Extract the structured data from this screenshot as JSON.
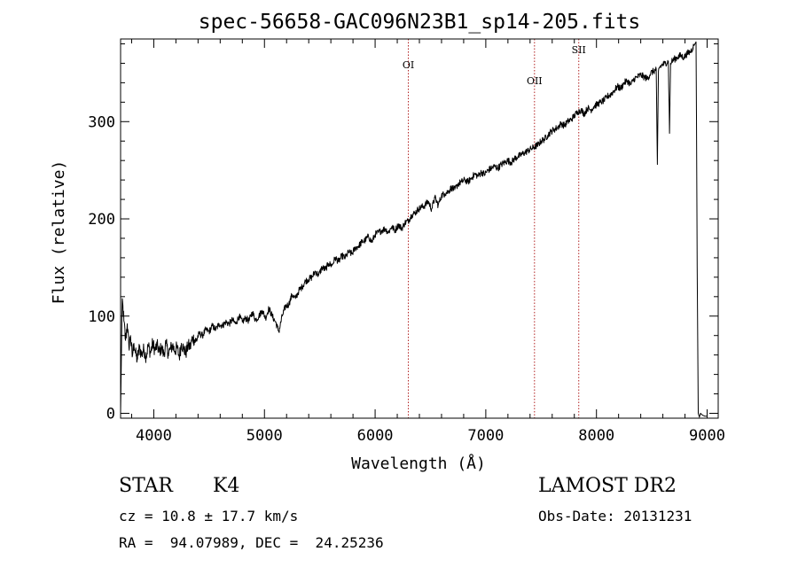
{
  "chart_data": {
    "type": "line",
    "title": "spec-56658-GAC096N23B1_sp14-205.fits",
    "xlabel": "Wavelength (Å)",
    "ylabel": "Flux (relative)",
    "xlim": [
      3700,
      9100
    ],
    "ylim": [
      -5,
      385
    ],
    "x_ticks": [
      4000,
      5000,
      6000,
      7000,
      8000,
      9000
    ],
    "y_ticks": [
      0,
      100,
      200,
      300
    ],
    "grid": false,
    "series": [
      {
        "x": [
          3700,
          3715,
          3730,
          3745,
          3760,
          3775,
          3790,
          3805,
          3820,
          3835,
          3850,
          3870,
          3890,
          3910,
          3930,
          3950,
          3970,
          3990,
          4010,
          4030,
          4050,
          4070,
          4090,
          4110,
          4130,
          4150,
          4170,
          4190,
          4210,
          4230,
          4250,
          4270,
          4290,
          4310,
          4330,
          4350,
          4380,
          4410,
          4440,
          4470,
          4500,
          4530,
          4560,
          4590,
          4620,
          4650,
          4680,
          4710,
          4740,
          4770,
          4800,
          4830,
          4860,
          4890,
          4920,
          4950,
          4980,
          5010,
          5040,
          5070,
          5100,
          5130,
          5160,
          5190,
          5220,
          5250,
          5280,
          5310,
          5340,
          5370,
          5400,
          5430,
          5460,
          5490,
          5520,
          5550,
          5580,
          5610,
          5640,
          5670,
          5700,
          5730,
          5760,
          5790,
          5820,
          5850,
          5880,
          5910,
          5940,
          5970,
          6000,
          6030,
          6060,
          6090,
          6120,
          6150,
          6180,
          6210,
          6240,
          6270,
          6300,
          6330,
          6360,
          6390,
          6420,
          6450,
          6480,
          6510,
          6540,
          6570,
          6600,
          6630,
          6660,
          6690,
          6720,
          6750,
          6780,
          6810,
          6840,
          6870,
          6900,
          6930,
          6960,
          6990,
          7020,
          7050,
          7080,
          7110,
          7140,
          7170,
          7200,
          7230,
          7260,
          7290,
          7320,
          7350,
          7380,
          7410,
          7440,
          7470,
          7500,
          7530,
          7560,
          7590,
          7620,
          7650,
          7680,
          7710,
          7740,
          7770,
          7800,
          7830,
          7860,
          7890,
          7920,
          7950,
          7980,
          8010,
          8040,
          8070,
          8100,
          8130,
          8160,
          8190,
          8220,
          8250,
          8280,
          8310,
          8340,
          8370,
          8400,
          8430,
          8460,
          8490,
          8520,
          8540,
          8550,
          8560,
          8570,
          8590,
          8620,
          8650,
          8660,
          8670,
          8680,
          8700,
          8730,
          8760,
          8790,
          8820,
          8850,
          8870,
          8890,
          8900,
          8910,
          8920,
          8930,
          8940,
          8960,
          8980,
          9000
        ],
        "y": [
          0,
          118,
          95,
          75,
          92,
          68,
          80,
          58,
          72,
          62,
          55,
          68,
          60,
          66,
          58,
          70,
          62,
          72,
          65,
          70,
          63,
          68,
          60,
          72,
          62,
          66,
          70,
          64,
          68,
          58,
          72,
          66,
          62,
          70,
          68,
          78,
          74,
          82,
          80,
          86,
          84,
          90,
          86,
          92,
          90,
          94,
          92,
          96,
          92,
          100,
          94,
          98,
          95,
          104,
          96,
          100,
          106,
          98,
          108,
          100,
          94,
          84,
          100,
          110,
          112,
          122,
          118,
          126,
          130,
          136,
          138,
          140,
          146,
          142,
          150,
          148,
          154,
          152,
          160,
          156,
          162,
          160,
          166,
          164,
          170,
          172,
          176,
          178,
          182,
          176,
          184,
          186,
          188,
          190,
          186,
          192,
          188,
          194,
          190,
          196,
          198,
          204,
          206,
          210,
          212,
          214,
          218,
          210,
          222,
          214,
          224,
          226,
          228,
          232,
          230,
          236,
          238,
          240,
          238,
          242,
          246,
          244,
          248,
          246,
          250,
          252,
          254,
          252,
          256,
          258,
          260,
          258,
          262,
          264,
          266,
          268,
          270,
          272,
          274,
          276,
          280,
          282,
          286,
          290,
          292,
          294,
          298,
          296,
          300,
          302,
          306,
          310,
          312,
          308,
          314,
          312,
          316,
          318,
          320,
          322,
          326,
          328,
          332,
          336,
          334,
          340,
          342,
          338,
          344,
          346,
          348,
          346,
          344,
          350,
          352,
          354,
          256,
          352,
          356,
          358,
          360,
          362,
          288,
          360,
          362,
          364,
          366,
          368,
          366,
          370,
          372,
          376,
          380,
          382,
          150,
          0,
          -4,
          0,
          -2,
          -3,
          -3
        ]
      }
    ],
    "lines": [
      {
        "label": "OI",
        "x": 6300
      },
      {
        "label": "OII",
        "x": 7440
      },
      {
        "label": "SII",
        "x": 7840
      }
    ],
    "annotations": {
      "class": "STAR",
      "subclass": "K4",
      "survey": "LAMOST DR2",
      "cz": "cz = 10.8 ± 17.7 km/s",
      "obs_date": "Obs-Date: 20131231",
      "coords": "RA =  94.07989, DEC =  24.25236"
    },
    "colors": {
      "spectrum": "#000000",
      "line_marker": "#b22222"
    }
  }
}
